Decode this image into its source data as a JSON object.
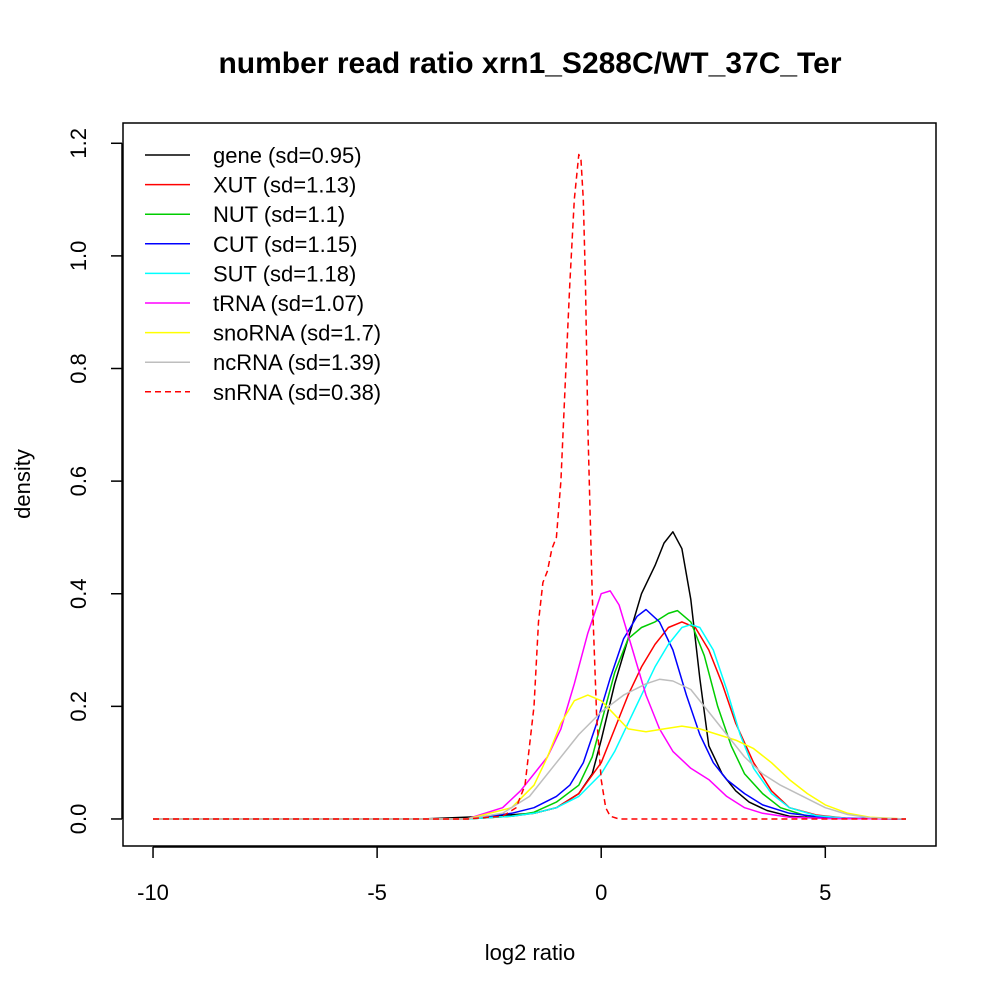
{
  "chart_data": {
    "type": "line",
    "title": "number read ratio xrn1_S288C/WT_37C_Ter",
    "xlabel": "log2 ratio",
    "ylabel": "density",
    "xlim": [
      -10.67,
      7.47
    ],
    "ylim": [
      -0.048,
      1.236
    ],
    "xticks": [
      -10,
      -5,
      0,
      5
    ],
    "xtick_labels": [
      "-10",
      "-5",
      "0",
      "5"
    ],
    "yticks": [
      0.0,
      0.2,
      0.4,
      0.6,
      0.8,
      1.0,
      1.2
    ],
    "ytick_labels": [
      "0.0",
      "0.2",
      "0.4",
      "0.6",
      "0.8",
      "1.0",
      "1.2"
    ],
    "grid": false,
    "legend_position": "top-left",
    "series": [
      {
        "name": "gene (sd=0.95)",
        "color": "#000000",
        "dash": "solid",
        "x": [
          -10,
          -4,
          -2.5,
          -1.5,
          -1.0,
          -0.5,
          -0.2,
          0.0,
          0.3,
          0.6,
          0.9,
          1.2,
          1.4,
          1.6,
          1.8,
          2.0,
          2.2,
          2.4,
          2.7,
          3.0,
          3.3,
          3.7,
          4.2,
          5.0,
          6.8
        ],
        "y": [
          0,
          0,
          0.005,
          0.01,
          0.02,
          0.045,
          0.08,
          0.14,
          0.24,
          0.32,
          0.4,
          0.45,
          0.49,
          0.51,
          0.48,
          0.39,
          0.25,
          0.13,
          0.08,
          0.05,
          0.03,
          0.015,
          0.005,
          0.001,
          0
        ]
      },
      {
        "name": "XUT (sd=1.13)",
        "color": "#ff0000",
        "dash": "solid",
        "x": [
          -10,
          -3,
          -2,
          -1.5,
          -1.0,
          -0.5,
          0.0,
          0.3,
          0.6,
          0.9,
          1.2,
          1.5,
          1.8,
          2.1,
          2.4,
          2.7,
          3.0,
          3.4,
          3.8,
          4.2,
          4.8,
          5.5,
          6.8
        ],
        "y": [
          0,
          0,
          0.005,
          0.01,
          0.02,
          0.045,
          0.1,
          0.16,
          0.22,
          0.27,
          0.31,
          0.34,
          0.35,
          0.34,
          0.3,
          0.24,
          0.17,
          0.1,
          0.05,
          0.02,
          0.007,
          0.001,
          0
        ]
      },
      {
        "name": "NUT (sd=1.1)",
        "color": "#00cd00",
        "dash": "solid",
        "x": [
          -10,
          -3,
          -2,
          -1.5,
          -1.0,
          -0.5,
          -0.2,
          0.0,
          0.3,
          0.6,
          0.9,
          1.2,
          1.5,
          1.7,
          2.0,
          2.3,
          2.6,
          2.9,
          3.2,
          3.6,
          4.0,
          4.6,
          5.5,
          6.8
        ],
        "y": [
          0,
          0,
          0.005,
          0.012,
          0.03,
          0.06,
          0.11,
          0.17,
          0.26,
          0.32,
          0.34,
          0.35,
          0.365,
          0.37,
          0.35,
          0.29,
          0.2,
          0.13,
          0.08,
          0.045,
          0.02,
          0.005,
          0.001,
          0
        ]
      },
      {
        "name": "CUT (sd=1.15)",
        "color": "#0000ff",
        "dash": "solid",
        "x": [
          -10,
          -3,
          -2,
          -1.5,
          -1.0,
          -0.7,
          -0.4,
          -0.1,
          0.2,
          0.5,
          0.8,
          1.0,
          1.3,
          1.6,
          1.9,
          2.2,
          2.5,
          2.8,
          3.2,
          3.6,
          4.2,
          5.0,
          6.8
        ],
        "y": [
          0,
          0,
          0.01,
          0.02,
          0.04,
          0.06,
          0.1,
          0.17,
          0.25,
          0.32,
          0.36,
          0.372,
          0.35,
          0.3,
          0.22,
          0.15,
          0.1,
          0.07,
          0.045,
          0.025,
          0.01,
          0.002,
          0
        ]
      },
      {
        "name": "SUT (sd=1.18)",
        "color": "#00ffff",
        "dash": "solid",
        "x": [
          -10,
          -3,
          -2,
          -1.5,
          -1.0,
          -0.5,
          0.0,
          0.3,
          0.6,
          0.9,
          1.2,
          1.5,
          1.8,
          2.0,
          2.2,
          2.5,
          2.8,
          3.1,
          3.4,
          3.8,
          4.2,
          4.8,
          5.5,
          6.8
        ],
        "y": [
          0,
          0,
          0.005,
          0.01,
          0.02,
          0.04,
          0.08,
          0.12,
          0.17,
          0.22,
          0.27,
          0.31,
          0.34,
          0.345,
          0.34,
          0.3,
          0.23,
          0.15,
          0.09,
          0.045,
          0.02,
          0.006,
          0.001,
          0
        ]
      },
      {
        "name": "tRNA (sd=1.07)",
        "color": "#ff00ff",
        "dash": "solid",
        "x": [
          -10,
          -3,
          -2.2,
          -1.8,
          -1.5,
          -1.2,
          -0.9,
          -0.6,
          -0.3,
          0.0,
          0.2,
          0.4,
          0.7,
          1.0,
          1.3,
          1.6,
          2.0,
          2.4,
          2.8,
          3.2,
          3.6,
          4.2,
          5.0,
          6.8
        ],
        "y": [
          0,
          0,
          0.02,
          0.05,
          0.08,
          0.11,
          0.16,
          0.24,
          0.33,
          0.4,
          0.405,
          0.38,
          0.3,
          0.22,
          0.16,
          0.12,
          0.09,
          0.07,
          0.04,
          0.02,
          0.01,
          0.003,
          0.001,
          0
        ]
      },
      {
        "name": "snoRNA (sd=1.7)",
        "color": "#ffff00",
        "dash": "solid",
        "x": [
          -10,
          -3,
          -2,
          -1.5,
          -1.2,
          -0.9,
          -0.6,
          -0.3,
          0.0,
          0.3,
          0.6,
          1.0,
          1.4,
          1.8,
          2.2,
          2.6,
          3.0,
          3.4,
          3.8,
          4.2,
          4.6,
          5.0,
          5.5,
          6.0,
          6.8
        ],
        "y": [
          0,
          0,
          0.02,
          0.06,
          0.11,
          0.17,
          0.21,
          0.22,
          0.21,
          0.185,
          0.16,
          0.155,
          0.16,
          0.165,
          0.16,
          0.15,
          0.14,
          0.125,
          0.1,
          0.07,
          0.045,
          0.025,
          0.01,
          0.003,
          0
        ]
      },
      {
        "name": "ncRNA (sd=1.39)",
        "color": "#bebebe",
        "dash": "solid",
        "x": [
          -10,
          -3,
          -2.2,
          -1.6,
          -1.0,
          -0.5,
          0.0,
          0.5,
          1.0,
          1.3,
          1.6,
          2.0,
          2.4,
          2.8,
          3.2,
          3.6,
          4.0,
          4.5,
          5.0,
          5.5,
          6.0,
          6.8
        ],
        "y": [
          0,
          0,
          0.01,
          0.04,
          0.1,
          0.15,
          0.19,
          0.22,
          0.24,
          0.248,
          0.245,
          0.23,
          0.19,
          0.15,
          0.11,
          0.08,
          0.06,
          0.04,
          0.02,
          0.008,
          0.002,
          0
        ]
      },
      {
        "name": "snRNA (sd=0.38)",
        "color": "#ff0000",
        "dash": "dashed",
        "x": [
          -10,
          -3,
          -2.2,
          -1.9,
          -1.7,
          -1.5,
          -1.4,
          -1.3,
          -1.2,
          -1.1,
          -1.0,
          -0.9,
          -0.8,
          -0.7,
          -0.6,
          -0.5,
          -0.45,
          -0.4,
          -0.35,
          -0.3,
          -0.2,
          -0.1,
          0.0,
          0.1,
          0.2,
          0.4,
          6.8
        ],
        "y": [
          0,
          0,
          0.005,
          0.02,
          0.06,
          0.2,
          0.35,
          0.42,
          0.44,
          0.48,
          0.5,
          0.6,
          0.78,
          0.95,
          1.1,
          1.18,
          1.17,
          1.1,
          0.95,
          0.7,
          0.4,
          0.18,
          0.07,
          0.02,
          0.005,
          0,
          0
        ]
      }
    ]
  }
}
